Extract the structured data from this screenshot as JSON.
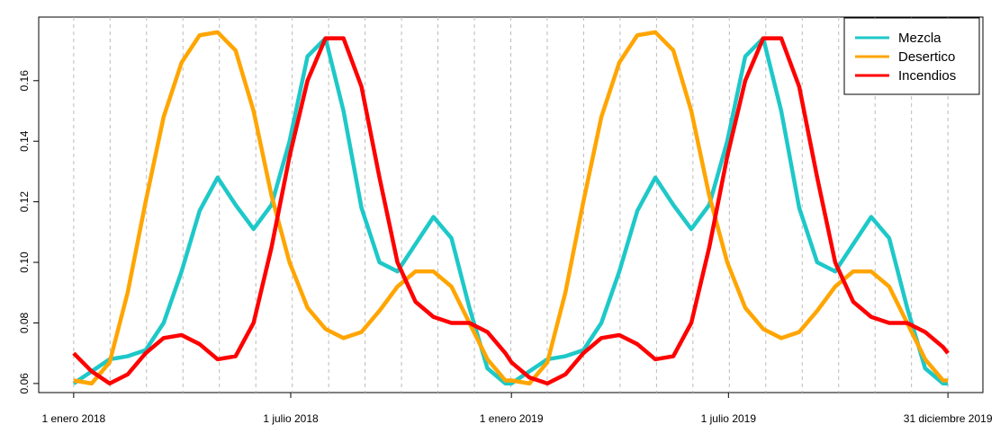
{
  "chart_data": {
    "type": "line",
    "x": [
      0,
      15,
      30,
      45,
      60,
      75,
      90,
      105,
      120,
      135,
      150,
      165,
      180,
      195,
      210,
      225,
      240,
      255,
      270,
      285,
      300,
      315,
      330,
      345,
      360,
      365,
      380,
      395,
      410,
      425,
      440,
      455,
      470,
      485,
      500,
      515,
      530,
      545,
      560,
      575,
      590,
      605,
      620,
      635,
      650,
      665,
      680,
      695,
      710,
      725,
      729
    ],
    "series": [
      {
        "name": "Mezcla",
        "color": "#1ec8c8",
        "values": [
          0.06,
          0.064,
          0.068,
          0.069,
          0.071,
          0.08,
          0.097,
          0.117,
          0.128,
          0.119,
          0.111,
          0.119,
          0.14,
          0.168,
          0.174,
          0.15,
          0.118,
          0.1,
          0.097,
          0.106,
          0.115,
          0.108,
          0.085,
          0.065,
          0.06,
          0.06,
          0.064,
          0.068,
          0.069,
          0.071,
          0.08,
          0.097,
          0.117,
          0.128,
          0.119,
          0.111,
          0.119,
          0.14,
          0.168,
          0.174,
          0.15,
          0.118,
          0.1,
          0.097,
          0.106,
          0.115,
          0.108,
          0.085,
          0.065,
          0.06,
          0.06
        ]
      },
      {
        "name": "Desertico",
        "color": "#ffa500",
        "values": [
          0.061,
          0.06,
          0.067,
          0.09,
          0.12,
          0.148,
          0.166,
          0.175,
          0.176,
          0.17,
          0.15,
          0.122,
          0.1,
          0.085,
          0.078,
          0.075,
          0.077,
          0.084,
          0.092,
          0.097,
          0.097,
          0.092,
          0.08,
          0.068,
          0.061,
          0.061,
          0.06,
          0.067,
          0.09,
          0.12,
          0.148,
          0.166,
          0.175,
          0.176,
          0.17,
          0.15,
          0.122,
          0.1,
          0.085,
          0.078,
          0.075,
          0.077,
          0.084,
          0.092,
          0.097,
          0.097,
          0.092,
          0.08,
          0.068,
          0.061,
          0.061
        ]
      },
      {
        "name": "Incendios",
        "color": "#ff0000",
        "values": [
          0.07,
          0.064,
          0.06,
          0.063,
          0.07,
          0.075,
          0.076,
          0.073,
          0.068,
          0.069,
          0.08,
          0.105,
          0.135,
          0.16,
          0.174,
          0.174,
          0.158,
          0.128,
          0.1,
          0.087,
          0.082,
          0.08,
          0.08,
          0.077,
          0.07,
          0.067,
          0.062,
          0.06,
          0.063,
          0.07,
          0.075,
          0.076,
          0.073,
          0.068,
          0.069,
          0.08,
          0.105,
          0.135,
          0.16,
          0.174,
          0.174,
          0.158,
          0.128,
          0.1,
          0.087,
          0.082,
          0.08,
          0.08,
          0.077,
          0.072,
          0.07
        ]
      }
    ],
    "xlim": [
      -29.16,
      758.16
    ],
    "xticks": [
      {
        "value": 0,
        "label": "1 enero 2018"
      },
      {
        "value": 181,
        "label": "1 julio 2018"
      },
      {
        "value": 365,
        "label": "1 enero 2019"
      },
      {
        "value": 546,
        "label": "1 julio 2019"
      },
      {
        "value": 729,
        "label": "31 diciembre 2019"
      }
    ],
    "ylim": [
      0.057,
      0.181
    ],
    "yticks": [
      0.06,
      0.08,
      {
        "value": 0.1,
        "label": "0.10"
      },
      0.12,
      0.14,
      0.16
    ],
    "grid": true,
    "legend": "top-right"
  }
}
